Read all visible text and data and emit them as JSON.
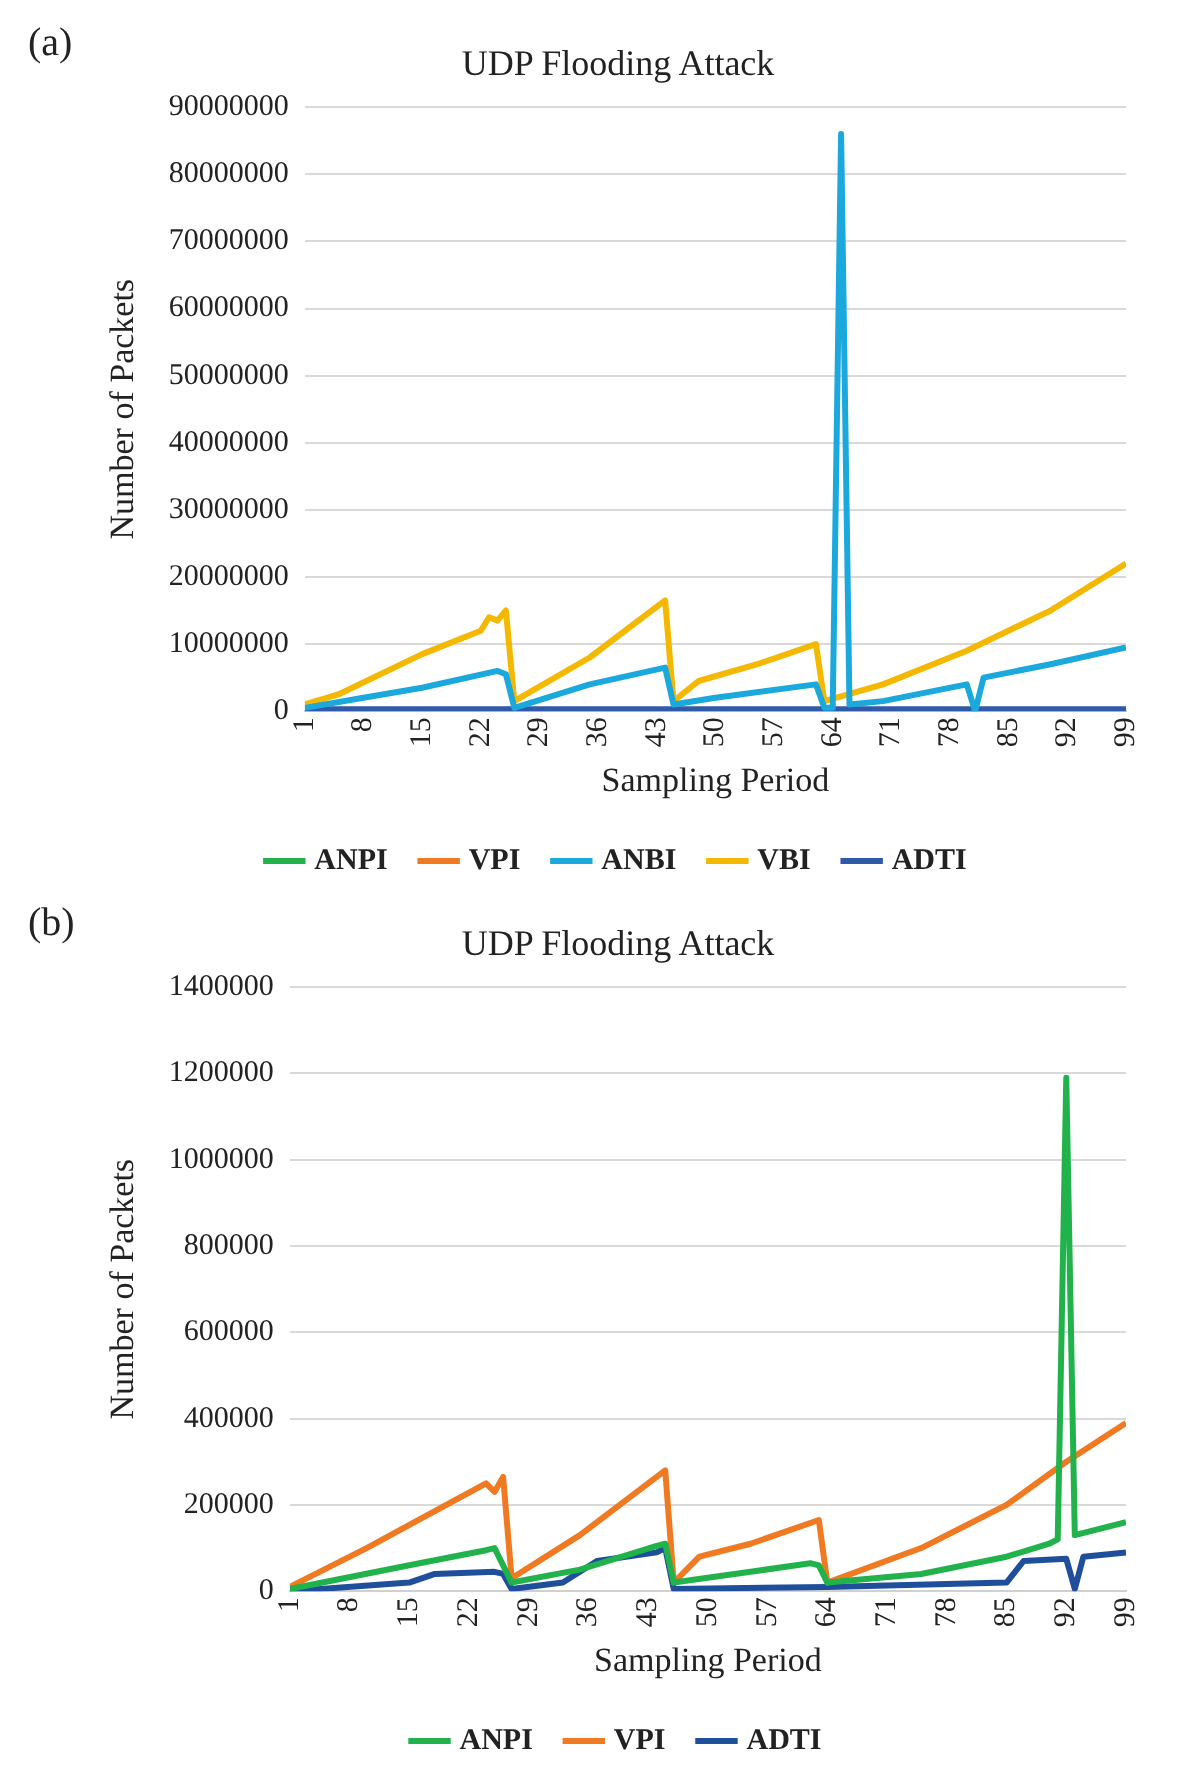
{
  "chart_data": [
    {
      "type": "line",
      "title": "UDP Flooding Attack",
      "annotations": [
        "(a)"
      ],
      "xlabel": "Sampling Period",
      "ylabel": "Number of Packets",
      "xlim": [
        1,
        99
      ],
      "xticks": [
        1,
        8,
        15,
        22,
        29,
        36,
        43,
        50,
        57,
        64,
        71,
        78,
        85,
        92,
        99
      ],
      "ylim": [
        0,
        90000000
      ],
      "yticks": [
        0,
        10000000,
        20000000,
        30000000,
        40000000,
        50000000,
        60000000,
        70000000,
        80000000,
        90000000
      ],
      "grid": "y",
      "legend": "bottom",
      "marker": "none",
      "line_style": "solid",
      "series": [
        {
          "name": "ANPI",
          "color": "#22b24c"
        },
        {
          "name": "VPI",
          "color": "#f07a22"
        },
        {
          "name": "ANBI",
          "color": "#1ba9dd",
          "x": [
            1,
            8,
            15,
            24,
            25,
            26,
            35,
            44,
            45,
            50,
            62,
            63,
            64,
            65,
            66,
            70,
            80,
            81,
            82,
            90,
            99
          ],
          "values": [
            500000,
            2000000,
            3500000,
            6000000,
            5500000,
            500000,
            4000000,
            6500000,
            1000000,
            2000000,
            4000000,
            500000,
            500000,
            86000000,
            1000000,
            1500000,
            4000000,
            0,
            5000000,
            7000000,
            9500000
          ]
        },
        {
          "name": "VBI",
          "color": "#f5b800",
          "x": [
            1,
            5,
            15,
            22,
            23,
            24,
            25,
            26,
            35,
            44,
            45,
            48,
            55,
            62,
            63,
            70,
            80,
            90,
            99
          ],
          "values": [
            1000000,
            2500000,
            8500000,
            12000000,
            14000000,
            13500000,
            15000000,
            1500000,
            8000000,
            16500000,
            1500000,
            4500000,
            7000000,
            10000000,
            1500000,
            4000000,
            9000000,
            15000000,
            22000000
          ]
        },
        {
          "name": "ADTI",
          "color": "#2e5aa8",
          "x": [
            1,
            99
          ],
          "values": [
            300000,
            300000
          ]
        }
      ]
    },
    {
      "type": "line",
      "title": "UDP Flooding Attack",
      "annotations": [
        "(b)"
      ],
      "xlabel": "Sampling Period",
      "ylabel": "Number of Packets",
      "xlim": [
        1,
        99
      ],
      "xticks": [
        1,
        8,
        15,
        22,
        29,
        36,
        43,
        50,
        57,
        64,
        71,
        78,
        85,
        92,
        99
      ],
      "ylim": [
        0,
        1400000
      ],
      "yticks": [
        0,
        200000,
        400000,
        600000,
        800000,
        1000000,
        1200000,
        1400000
      ],
      "grid": "y",
      "legend": "bottom",
      "marker": "none",
      "line_style": "solid",
      "series": [
        {
          "name": "ANPI",
          "color": "#22b24c",
          "x": [
            1,
            15,
            24,
            25,
            27,
            35,
            44,
            45,
            46,
            55,
            62,
            63,
            64,
            75,
            85,
            90,
            91,
            92,
            93,
            99
          ],
          "values": [
            5000,
            60000,
            95000,
            100000,
            20000,
            50000,
            105000,
            110000,
            20000,
            45000,
            65000,
            60000,
            20000,
            40000,
            80000,
            110000,
            120000,
            1190000,
            130000,
            160000
          ]
        },
        {
          "name": "VPI",
          "color": "#f07a22",
          "x": [
            1,
            10,
            24,
            25,
            26,
            27,
            35,
            45,
            46,
            49,
            55,
            63,
            64,
            75,
            85,
            92,
            99
          ],
          "values": [
            10000,
            100000,
            250000,
            230000,
            265000,
            30000,
            130000,
            280000,
            20000,
            80000,
            110000,
            165000,
            20000,
            100000,
            200000,
            300000,
            390000
          ]
        },
        {
          "name": "ADTI",
          "color": "#1f4e9a",
          "x": [
            1,
            15,
            18,
            25,
            26,
            27,
            33,
            37,
            44,
            45,
            46,
            64,
            85,
            87,
            92,
            93,
            94,
            99
          ],
          "values": [
            0,
            20000,
            40000,
            45000,
            40000,
            5000,
            20000,
            70000,
            90000,
            100000,
            5000,
            10000,
            20000,
            70000,
            75000,
            5000,
            80000,
            90000
          ]
        }
      ]
    }
  ]
}
